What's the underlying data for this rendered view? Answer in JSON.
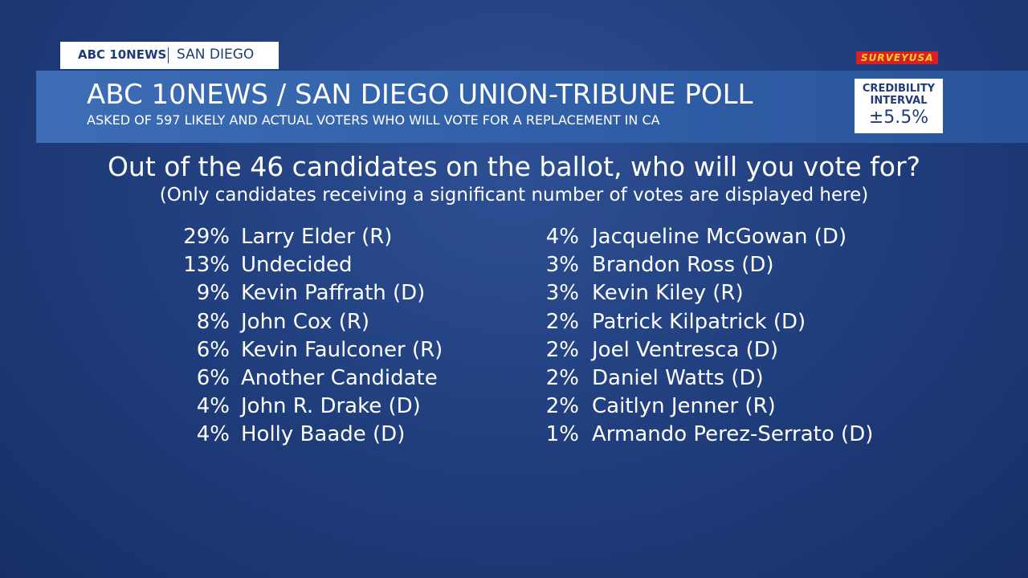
{
  "branding": {
    "station": "ABC 10NEWS",
    "location": "SAN DIEGO",
    "pollster": "SURVEYUSA"
  },
  "header": {
    "title": "ABC 10NEWS / SAN DIEGO UNION-TRIBUNE POLL",
    "subtitle": "ASKED OF 597 LIKELY AND ACTUAL VOTERS WHO WILL VOTE FOR A REPLACEMENT IN CA"
  },
  "credibility": {
    "label": [
      "CREDIBILITY",
      "INTERVAL"
    ],
    "value": "±5.5%"
  },
  "question": "Out of the 46 candidates on the ballot, who will you vote for?",
  "note": "(Only candidates receiving a significant number of votes are displayed here)",
  "results": {
    "columns": [
      [
        {
          "percent": "29%",
          "name": "Larry Elder (R)"
        },
        {
          "percent": "13%",
          "name": "Undecided"
        },
        {
          "percent": "9%",
          "name": "Kevin Paffrath (D)"
        },
        {
          "percent": "8%",
          "name": "John Cox (R)"
        },
        {
          "percent": "6%",
          "name": "Kevin Faulconer (R)"
        },
        {
          "percent": "6%",
          "name": "Another Candidate"
        },
        {
          "percent": "4%",
          "name": "John R. Drake (D)"
        },
        {
          "percent": "4%",
          "name": "Holly Baade (D)"
        }
      ],
      [
        {
          "percent": "4%",
          "name": "Jacqueline McGowan (D)"
        },
        {
          "percent": "3%",
          "name": "Brandon Ross (D)"
        },
        {
          "percent": "3%",
          "name": "Kevin Kiley (R)"
        },
        {
          "percent": "2%",
          "name": "Patrick Kilpatrick (D)"
        },
        {
          "percent": "2%",
          "name": "Joel Ventresca (D)"
        },
        {
          "percent": "2%",
          "name": "Daniel Watts (D)"
        },
        {
          "percent": "2%",
          "name": "Caitlyn Jenner (R)"
        },
        {
          "percent": "1%",
          "name": "Armando Perez-Serrato (D)"
        }
      ]
    ]
  }
}
